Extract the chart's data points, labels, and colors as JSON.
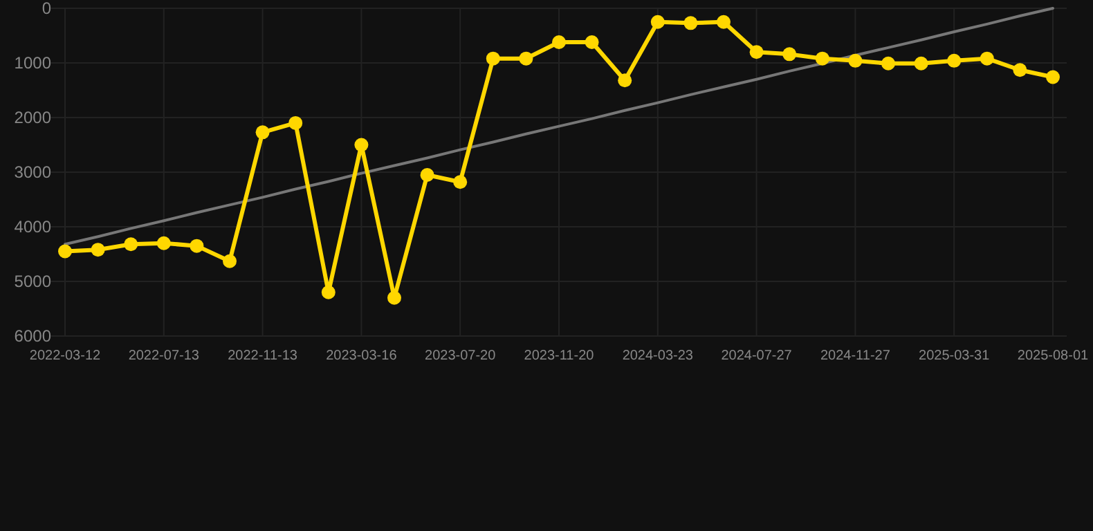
{
  "chart_data": {
    "type": "line",
    "categories": [
      "2022-03-12",
      null,
      null,
      "2022-07-13",
      null,
      null,
      "2022-11-13",
      null,
      null,
      "2023-03-16",
      null,
      null,
      "2023-07-20",
      null,
      null,
      "2023-11-20",
      null,
      null,
      "2024-03-23",
      null,
      null,
      "2024-07-27",
      null,
      null,
      "2024-11-27",
      null,
      null,
      "2025-03-31",
      null,
      null,
      "2025-08-01"
    ],
    "series": [
      {
        "color": "#ffd700",
        "marker": "circle",
        "values": [
          4450,
          4420,
          4320,
          4300,
          4350,
          4630,
          2270,
          2100,
          5200,
          2500,
          5300,
          3050,
          3180,
          920,
          920,
          620,
          620,
          1320,
          250,
          270,
          250,
          800,
          840,
          920,
          960,
          1010,
          1010,
          960,
          920,
          1130,
          1260
        ]
      },
      {
        "color": "#777777",
        "marker": "none",
        "values": [
          4320,
          4180,
          4030,
          3890,
          3740,
          3600,
          3460,
          3310,
          3170,
          3020,
          2880,
          2740,
          2590,
          2450,
          2300,
          2160,
          2020,
          1870,
          1730,
          1580,
          1440,
          1300,
          1150,
          1010,
          860,
          720,
          580,
          430,
          290,
          140,
          0
        ]
      }
    ],
    "ylim": [
      6000,
      0
    ],
    "yticks": [
      0,
      1000,
      2000,
      3000,
      4000,
      5000,
      6000
    ],
    "grid": true
  }
}
